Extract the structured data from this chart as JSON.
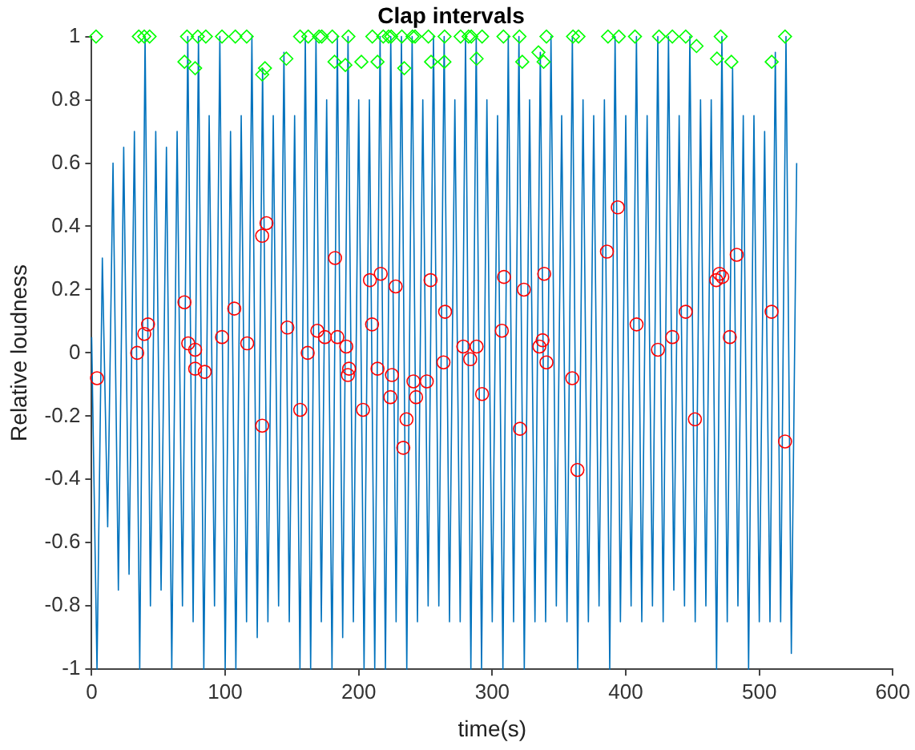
{
  "chart_data": {
    "type": "line",
    "title": "Clap intervals",
    "xlabel": "time(s)",
    "ylabel": "Relative loudness",
    "xlim": [
      0,
      600
    ],
    "xticks": [
      0,
      100,
      200,
      300,
      400,
      500,
      600
    ],
    "ylim": [
      -1,
      1
    ],
    "yticks": [
      -1,
      -0.8,
      -0.6,
      -0.4,
      -0.2,
      0,
      0.2,
      0.4,
      0.6,
      0.8,
      1
    ],
    "grid": false,
    "legend": false,
    "series": [
      {
        "type": "line",
        "color": "#0072bd",
        "marker": "none",
        "x": [
          0,
          4,
          8,
          12,
          16,
          20,
          24,
          28,
          32,
          36,
          40,
          44,
          48,
          52,
          56,
          60,
          64,
          68,
          72,
          76,
          80,
          84,
          88,
          92,
          96,
          100,
          104,
          108,
          112,
          116,
          120,
          124,
          128,
          132,
          136,
          140,
          144,
          148,
          152,
          156,
          160,
          164,
          168,
          172,
          176,
          180,
          184,
          188,
          192,
          196,
          200,
          204,
          208,
          212,
          216,
          220,
          224,
          228,
          232,
          236,
          240,
          244,
          248,
          252,
          256,
          260,
          264,
          268,
          272,
          276,
          280,
          284,
          288,
          292,
          296,
          300,
          304,
          308,
          312,
          316,
          320,
          324,
          328,
          332,
          336,
          340,
          344,
          348,
          352,
          356,
          360,
          364,
          368,
          372,
          376,
          380,
          384,
          388,
          392,
          396,
          400,
          404,
          408,
          412,
          416,
          420,
          424,
          428,
          432,
          436,
          440,
          444,
          448,
          452,
          456,
          460,
          464,
          468,
          472,
          476,
          480,
          484,
          488,
          492,
          496,
          500,
          504,
          508,
          512,
          516,
          520,
          524,
          528
        ],
        "values": [
          0.05,
          -1,
          0.3,
          -0.55,
          0.6,
          -0.75,
          0.65,
          -0.7,
          0.7,
          -1,
          1,
          -0.8,
          0.7,
          -0.75,
          0.65,
          -1,
          0.7,
          -0.8,
          1,
          -0.85,
          1,
          -1,
          0.75,
          -0.8,
          1,
          -1,
          0.7,
          -1,
          0.75,
          -0.85,
          1,
          -0.9,
          0.9,
          -0.85,
          0.75,
          -0.8,
          0.95,
          -0.85,
          0.75,
          -1,
          1,
          -1,
          1,
          -0.85,
          0.8,
          -1,
          1,
          -0.9,
          1,
          -0.85,
          0.8,
          -1,
          0.8,
          -1,
          1,
          -1,
          1,
          -0.85,
          1,
          -1,
          1,
          -0.85,
          0.8,
          -0.8,
          1,
          -0.8,
          1,
          -0.85,
          0.8,
          -0.85,
          1,
          -1,
          1,
          -1,
          0.8,
          -0.85,
          0.75,
          -1,
          1,
          -0.85,
          1,
          -1,
          0.8,
          -0.85,
          0.95,
          -0.85,
          1,
          -0.8,
          0.75,
          -0.85,
          1,
          -1,
          0.8,
          -0.85,
          0.75,
          -0.8,
          0.8,
          -1,
          1,
          -0.85,
          0.75,
          -0.8,
          1,
          -0.85,
          0.75,
          -0.8,
          1,
          -0.85,
          1,
          -0.75,
          0.75,
          -0.8,
          1,
          -0.85,
          0.8,
          -0.8,
          0.8,
          -1,
          1,
          -0.85,
          0.9,
          -0.8,
          0.75,
          -1,
          0.75,
          -0.85,
          0.7,
          -0.85,
          0.95,
          -0.85,
          1,
          -0.95,
          0.6
        ]
      },
      {
        "type": "scatter",
        "color": "#00ff00",
        "marker": "diamond",
        "x": [
          3.3,
          35.3,
          39.4,
          43.4,
          71.4,
          79.5,
          85.5,
          97.6,
          107.6,
          116.1,
          156.1,
          162.2,
          170.3,
          172.3,
          180.2,
          192.3,
          210.2,
          218.4,
          222.4,
          224.3,
          232.3,
          240.3,
          242.2,
          252.2,
          264.3,
          276.3,
          282.3,
          284.3,
          292.4,
          308.4,
          320.4,
          340.6,
          360.5,
          364.6,
          386.7,
          394.8,
          406.9,
          424.9,
          434.9,
          444.9,
          471.1,
          519.3,
          69.5,
          77.5,
          127.7,
          129.8,
          145.8,
          181.9,
          190,
          202,
          214.1,
          234.1,
          254.2,
          264.2,
          288.3,
          322.5,
          334.6,
          338.5,
          453,
          468.3,
          479.1,
          509.3
        ],
        "values": [
          1,
          1,
          1,
          1,
          1,
          1,
          1,
          1,
          1,
          1,
          1,
          1,
          1,
          1,
          1,
          1,
          1,
          1,
          1,
          1,
          1,
          1,
          1,
          1,
          1,
          1,
          1,
          1,
          1,
          1,
          1,
          1,
          1,
          1,
          1,
          1,
          1,
          1,
          1,
          1,
          1,
          1,
          0.92,
          0.9,
          0.88,
          0.9,
          0.93,
          0.92,
          0.91,
          0.92,
          0.92,
          0.9,
          0.92,
          0.92,
          0.93,
          0.92,
          0.95,
          0.92,
          0.97,
          0.93,
          0.92,
          0.92
        ]
      },
      {
        "type": "scatter",
        "color": "#ff0000",
        "marker": "circle",
        "x": [
          4,
          34.1,
          39.4,
          42.2,
          69.5,
          72.3,
          77.5,
          77.5,
          84.7,
          97.6,
          106.8,
          116.5,
          127.7,
          130.9,
          127.7,
          146.6,
          156.2,
          161.8,
          169,
          174.7,
          182.3,
          184,
          190.7,
          192.8,
          191.9,
          203.2,
          208.4,
          210,
          214.1,
          216.5,
          224.9,
          223.7,
          227.7,
          233.4,
          235.8,
          241,
          243,
          251,
          253.8,
          263.5,
          264.7,
          278.3,
          283.5,
          288.3,
          292.4,
          307.2,
          308.8,
          323.7,
          320.8,
          338.9,
          335.3,
          337.7,
          340.6,
          359.9,
          363.8,
          385.9,
          394,
          408.1,
          424.1,
          434.9,
          444.9,
          451.8,
          467.8,
          470.2,
          472.3,
          477.9,
          483.1,
          509.2,
          519.3
        ],
        "values": [
          -0.08,
          0,
          0.06,
          0.09,
          0.16,
          0.03,
          0.01,
          -0.05,
          -0.06,
          0.05,
          0.14,
          0.03,
          0.37,
          0.41,
          -0.23,
          0.08,
          -0.18,
          0,
          0.07,
          0.05,
          0.3,
          0.05,
          0.02,
          -0.05,
          -0.07,
          -0.18,
          0.23,
          0.09,
          -0.05,
          0.25,
          -0.07,
          -0.14,
          0.21,
          -0.3,
          -0.21,
          -0.09,
          -0.14,
          -0.09,
          0.23,
          -0.03,
          0.13,
          0.02,
          -0.02,
          0.02,
          -0.13,
          0.07,
          0.24,
          0.2,
          -0.24,
          0.25,
          0.02,
          0.04,
          -0.03,
          -0.08,
          -0.37,
          0.32,
          0.46,
          0.09,
          0.01,
          0.05,
          0.13,
          -0.21,
          0.23,
          0.25,
          0.24,
          0.05,
          0.31,
          0.13,
          -0.28
        ]
      }
    ]
  }
}
